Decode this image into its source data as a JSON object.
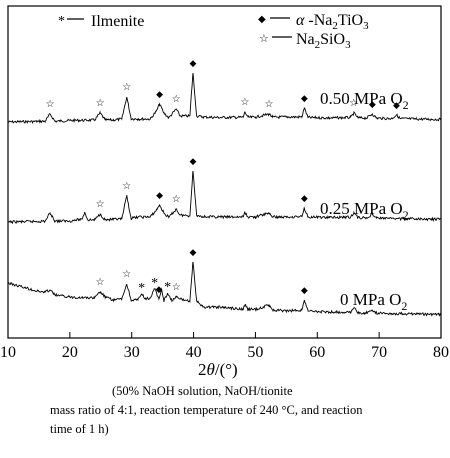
{
  "chart_data": {
    "type": "line",
    "xlabel": "2θ/(°)",
    "xlim": [
      10,
      80
    ],
    "x_ticks": [
      10,
      20,
      30,
      40,
      50,
      60,
      70,
      80
    ],
    "y_ticks_shown": false,
    "legend": [
      {
        "marker": "*",
        "label": "Ilmenite"
      },
      {
        "marker": "◆",
        "label": "α-Na2TiO3"
      },
      {
        "marker": "☆",
        "label": "Na2SiO3"
      }
    ],
    "series": [
      {
        "name": "0.50 MPa O2",
        "baseline": 122,
        "points": [
          [
            10,
            122
          ],
          [
            15,
            121.4
          ],
          [
            16,
            121.3
          ],
          [
            16.8,
            114
          ],
          [
            17.6,
            121.3
          ],
          [
            20,
            120.5
          ],
          [
            24,
            120
          ],
          [
            24.9,
            113
          ],
          [
            25.7,
            120
          ],
          [
            27,
            120
          ],
          [
            28.4,
            119
          ],
          [
            29.2,
            97
          ],
          [
            29.9,
            118.7
          ],
          [
            31,
            119
          ],
          [
            33,
            119
          ],
          [
            34,
            111
          ],
          [
            34.5,
            104
          ],
          [
            35.2,
            113
          ],
          [
            36,
            117.8
          ],
          [
            37.2,
            109
          ],
          [
            37.8,
            116
          ],
          [
            39.4,
            116
          ],
          [
            39.9,
            73
          ],
          [
            40.5,
            116
          ],
          [
            41.5,
            117
          ],
          [
            44,
            117.5
          ],
          [
            48,
            117.3
          ],
          [
            48.3,
            112
          ],
          [
            48.8,
            117.3
          ],
          [
            50,
            117.2
          ],
          [
            52.2,
            114
          ],
          [
            52.8,
            117.2
          ],
          [
            55,
            117
          ],
          [
            57.5,
            117
          ],
          [
            57.9,
            108
          ],
          [
            58.5,
            117.5
          ],
          [
            62,
            118
          ],
          [
            65.4,
            117.5
          ],
          [
            65.9,
            113
          ],
          [
            66.6,
            117.8
          ],
          [
            68,
            118
          ],
          [
            68.9,
            114
          ],
          [
            69.6,
            118.2
          ],
          [
            72,
            118.6
          ],
          [
            72.8,
            115
          ],
          [
            73.4,
            118.6
          ],
          [
            76,
            119
          ],
          [
            80,
            119.5
          ]
        ]
      },
      {
        "name": "0.25 MPa O2",
        "baseline": 222,
        "points": [
          [
            10,
            222
          ],
          [
            15,
            221.4
          ],
          [
            16,
            221.2
          ],
          [
            16.8,
            213
          ],
          [
            17.6,
            221
          ],
          [
            20,
            221
          ],
          [
            22,
            219
          ],
          [
            22.4,
            212
          ],
          [
            22.9,
            220
          ],
          [
            24,
            219.8
          ],
          [
            24.9,
            214
          ],
          [
            25.7,
            219.8
          ],
          [
            27,
            219.5
          ],
          [
            28.4,
            219
          ],
          [
            29.2,
            196
          ],
          [
            29.9,
            218.5
          ],
          [
            31,
            217
          ],
          [
            33,
            217
          ],
          [
            34,
            210
          ],
          [
            34.5,
            205
          ],
          [
            35.2,
            213
          ],
          [
            36,
            217.5
          ],
          [
            37.2,
            209
          ],
          [
            37.8,
            215
          ],
          [
            39.4,
            215.8
          ],
          [
            39.9,
            171
          ],
          [
            40.5,
            215.5
          ],
          [
            41.5,
            216.5
          ],
          [
            44,
            217
          ],
          [
            48,
            217
          ],
          [
            48.3,
            212.5
          ],
          [
            48.8,
            217
          ],
          [
            50,
            217
          ],
          [
            52.2,
            213
          ],
          [
            52.8,
            217
          ],
          [
            55,
            217
          ],
          [
            57.5,
            216.5
          ],
          [
            57.9,
            208
          ],
          [
            58.5,
            217
          ],
          [
            62,
            217.5
          ],
          [
            65.4,
            217
          ],
          [
            65.9,
            213
          ],
          [
            66.6,
            217.5
          ],
          [
            68,
            218
          ],
          [
            68.9,
            214
          ],
          [
            69.6,
            218
          ],
          [
            72,
            218.5
          ],
          [
            76,
            219
          ],
          [
            80,
            219.5
          ]
        ]
      },
      {
        "name": "0 MPa O2",
        "baseline": 283,
        "points": [
          [
            10,
            283
          ],
          [
            15,
            291.5
          ],
          [
            16,
            292
          ],
          [
            16.8,
            290
          ],
          [
            17.6,
            295
          ],
          [
            20,
            297
          ],
          [
            24,
            298
          ],
          [
            24.9,
            292
          ],
          [
            25.7,
            297
          ],
          [
            27,
            300
          ],
          [
            28.4,
            299
          ],
          [
            29.2,
            284
          ],
          [
            29.9,
            300
          ],
          [
            31,
            300
          ],
          [
            31.6,
            294
          ],
          [
            32.2,
            299
          ],
          [
            33,
            298
          ],
          [
            33.7,
            289
          ],
          [
            34.4,
            299
          ],
          [
            34.8,
            289
          ],
          [
            35.2,
            301
          ],
          [
            35.8,
            293
          ],
          [
            36.5,
            301
          ],
          [
            37.2,
            297
          ],
          [
            37.8,
            299
          ],
          [
            39.4,
            301
          ],
          [
            39.9,
            262
          ],
          [
            40.5,
            301
          ],
          [
            41.5,
            307
          ],
          [
            44,
            307
          ],
          [
            48,
            309
          ],
          [
            48.3,
            305
          ],
          [
            48.8,
            309
          ],
          [
            50,
            309.5
          ],
          [
            52.2,
            305
          ],
          [
            52.8,
            310
          ],
          [
            55,
            311
          ],
          [
            57.5,
            310
          ],
          [
            57.9,
            300
          ],
          [
            58.5,
            311
          ],
          [
            62,
            312
          ],
          [
            65.4,
            312
          ],
          [
            65.9,
            308
          ],
          [
            66.6,
            313
          ],
          [
            68,
            313
          ],
          [
            68.9,
            310
          ],
          [
            69.6,
            313
          ],
          [
            72,
            313.5
          ],
          [
            76,
            314
          ],
          [
            80,
            314.5
          ]
        ]
      }
    ],
    "series_labels": [
      "0.50 MPa O2",
      "0.25 MPa O2",
      "0 MPa O2"
    ],
    "annotations": {
      "0.50 MPa O2": [
        {
          "marker": "☆",
          "x": 16.8
        },
        {
          "marker": "☆",
          "x": 24.9
        },
        {
          "marker": "☆",
          "x": 29.2
        },
        {
          "marker": "◆",
          "x": 34.5
        },
        {
          "marker": "☆",
          "x": 37.2
        },
        {
          "marker": "◆",
          "x": 39.9
        },
        {
          "marker": "☆",
          "x": 48.3
        },
        {
          "marker": "☆",
          "x": 52.2
        },
        {
          "marker": "◆",
          "x": 57.9
        },
        {
          "marker": "☆",
          "x": 65.9
        },
        {
          "marker": "◆",
          "x": 68.9
        },
        {
          "marker": "◆",
          "x": 72.8
        }
      ],
      "0.25 MPa O2": [
        {
          "marker": "☆",
          "x": 24.9
        },
        {
          "marker": "☆",
          "x": 29.2
        },
        {
          "marker": "◆",
          "x": 34.5
        },
        {
          "marker": "☆",
          "x": 37.2
        },
        {
          "marker": "◆",
          "x": 39.9
        },
        {
          "marker": "◆",
          "x": 57.9
        }
      ],
      "0 MPa O2": [
        {
          "marker": "☆",
          "x": 24.9
        },
        {
          "marker": "☆",
          "x": 29.2
        },
        {
          "marker": "*",
          "x": 31.6
        },
        {
          "marker": "*",
          "x": 33.7
        },
        {
          "marker": "◆",
          "x": 34.4
        },
        {
          "marker": "*",
          "x": 35.8
        },
        {
          "marker": "☆",
          "x": 37.2
        },
        {
          "marker": "◆",
          "x": 39.9
        },
        {
          "marker": "◆",
          "x": 57.9
        }
      ]
    }
  },
  "caption": {
    "line1": "(50%  NaOH  solution,  NaOH/tionite",
    "line2": "mass ratio of 4:1, reaction temperature of 240 °C, and reaction",
    "line3": "time of 1 h)"
  }
}
